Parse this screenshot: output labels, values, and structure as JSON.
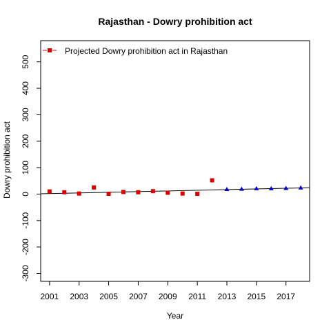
{
  "chart_data": {
    "type": "scatter",
    "title": "Rajasthan  -  Dowry prohibition act",
    "xlabel": "Year",
    "ylabel": "Dowry prohibition act",
    "xlim": [
      2000.4,
      2018.6
    ],
    "ylim": [
      -330,
      580
    ],
    "x_ticks": [
      2001,
      2003,
      2005,
      2007,
      2009,
      2011,
      2013,
      2015,
      2017
    ],
    "x_tick_labels": [
      "2001",
      "2003",
      "2005",
      "2007",
      "2009",
      "2011",
      "2013",
      "2015",
      "2017"
    ],
    "y_ticks": [
      -300,
      -200,
      -100,
      0,
      100,
      200,
      300,
      400,
      500
    ],
    "y_tick_labels": [
      "-300",
      "-200",
      "-100",
      "0",
      "100",
      "200",
      "300",
      "400",
      "500"
    ],
    "grid": false,
    "legend": {
      "position": "top-left",
      "entries": [
        {
          "label": "Projected  Dowry prohibition act  in  Rajasthan",
          "marker": "square",
          "color": "#dd0000"
        }
      ]
    },
    "series": [
      {
        "marker": "square",
        "color": "#dd0000",
        "points": [
          {
            "x": 2001,
            "y": 10
          },
          {
            "x": 2002,
            "y": 7
          },
          {
            "x": 2003,
            "y": 2
          },
          {
            "x": 2004,
            "y": 25
          },
          {
            "x": 2005,
            "y": 1
          },
          {
            "x": 2006,
            "y": 8
          },
          {
            "x": 2007,
            "y": 7
          },
          {
            "x": 2008,
            "y": 11
          },
          {
            "x": 2009,
            "y": 5
          },
          {
            "x": 2010,
            "y": 2
          },
          {
            "x": 2011,
            "y": 1
          },
          {
            "x": 2012,
            "y": 52
          }
        ]
      },
      {
        "marker": "triangle",
        "color": "#0000cc",
        "points": [
          {
            "x": 2013,
            "y": 18
          },
          {
            "x": 2014,
            "y": 19
          },
          {
            "x": 2015,
            "y": 21
          },
          {
            "x": 2016,
            "y": 21
          },
          {
            "x": 2017,
            "y": 22
          },
          {
            "x": 2018,
            "y": 24
          }
        ]
      }
    ],
    "trend_line": {
      "color": "#000000",
      "points": [
        {
          "x": 2000.4,
          "y": 1
        },
        {
          "x": 2018.6,
          "y": 24
        }
      ]
    }
  }
}
